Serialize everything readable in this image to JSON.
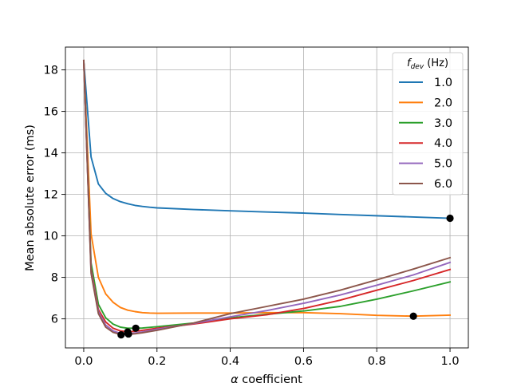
{
  "chart_data": {
    "type": "line",
    "title": "",
    "xlabel_prefix": "α",
    "xlabel_suffix": " coefficient",
    "ylabel": "Mean absolute error (ms)",
    "xlim": [
      -0.05,
      1.05
    ],
    "ylim": [
      4.6,
      19.1
    ],
    "x_ticks": [
      0.0,
      0.2,
      0.4,
      0.6,
      0.8,
      1.0
    ],
    "x_tick_labels": [
      "0.0",
      "0.2",
      "0.4",
      "0.6",
      "0.8",
      "1.0"
    ],
    "y_ticks": [
      6,
      8,
      10,
      12,
      14,
      16,
      18
    ],
    "y_tick_labels": [
      "6",
      "8",
      "10",
      "12",
      "14",
      "16",
      "18"
    ],
    "grid": true,
    "legend": {
      "title_main": "f",
      "title_sub": "dev",
      "title_unit": " (Hz)",
      "placement": "top-right"
    },
    "series": [
      {
        "name": "1.0",
        "color": "#1f77b4",
        "x": [
          0.0,
          0.02,
          0.04,
          0.06,
          0.08,
          0.1,
          0.12,
          0.14,
          0.16,
          0.18,
          0.2,
          0.3,
          0.4,
          0.5,
          0.6,
          0.7,
          0.8,
          0.9,
          1.0
        ],
        "y": [
          18.45,
          13.8,
          12.5,
          12.05,
          11.8,
          11.65,
          11.55,
          11.47,
          11.42,
          11.38,
          11.35,
          11.27,
          11.21,
          11.15,
          11.1,
          11.03,
          10.97,
          10.91,
          10.85
        ],
        "optimum": [
          1.0,
          10.85
        ]
      },
      {
        "name": "2.0",
        "color": "#ff7f0e",
        "x": [
          0.0,
          0.02,
          0.04,
          0.06,
          0.08,
          0.1,
          0.12,
          0.14,
          0.16,
          0.18,
          0.2,
          0.3,
          0.4,
          0.5,
          0.6,
          0.7,
          0.8,
          0.9,
          1.0
        ],
        "y": [
          18.45,
          10.1,
          8.0,
          7.2,
          6.8,
          6.55,
          6.42,
          6.35,
          6.3,
          6.28,
          6.27,
          6.28,
          6.28,
          6.3,
          6.3,
          6.25,
          6.17,
          6.13,
          6.18
        ],
        "optimum": [
          0.9,
          6.13
        ]
      },
      {
        "name": "3.0",
        "color": "#2ca02c",
        "x": [
          0.0,
          0.02,
          0.04,
          0.06,
          0.08,
          0.1,
          0.12,
          0.14,
          0.16,
          0.2,
          0.3,
          0.4,
          0.5,
          0.6,
          0.7,
          0.8,
          0.9,
          1.0
        ],
        "y": [
          18.45,
          8.7,
          6.7,
          6.05,
          5.75,
          5.6,
          5.55,
          5.55,
          5.56,
          5.62,
          5.8,
          6.05,
          6.22,
          6.38,
          6.6,
          6.95,
          7.35,
          7.78
        ],
        "optimum": [
          0.142,
          5.55
        ]
      },
      {
        "name": "4.0",
        "color": "#d62728",
        "x": [
          0.0,
          0.02,
          0.04,
          0.06,
          0.08,
          0.1,
          0.12,
          0.14,
          0.16,
          0.2,
          0.3,
          0.4,
          0.5,
          0.6,
          0.7,
          0.8,
          0.9,
          1.0
        ],
        "y": [
          18.45,
          8.4,
          6.45,
          5.85,
          5.55,
          5.42,
          5.38,
          5.4,
          5.45,
          5.55,
          5.75,
          6.0,
          6.2,
          6.5,
          6.9,
          7.38,
          7.85,
          8.38
        ],
        "optimum": [
          0.12,
          5.37
        ]
      },
      {
        "name": "5.0",
        "color": "#9467bd",
        "x": [
          0.0,
          0.02,
          0.04,
          0.06,
          0.08,
          0.1,
          0.12,
          0.14,
          0.16,
          0.2,
          0.3,
          0.4,
          0.5,
          0.6,
          0.7,
          0.8,
          0.9,
          1.0
        ],
        "y": [
          18.45,
          8.3,
          6.35,
          5.7,
          5.42,
          5.3,
          5.28,
          5.32,
          5.37,
          5.5,
          5.78,
          6.1,
          6.4,
          6.75,
          7.15,
          7.62,
          8.12,
          8.72
        ],
        "optimum": [
          0.122,
          5.27
        ]
      },
      {
        "name": "6.0",
        "color": "#8c564b",
        "x": [
          0.0,
          0.02,
          0.04,
          0.06,
          0.08,
          0.1,
          0.12,
          0.14,
          0.16,
          0.2,
          0.3,
          0.4,
          0.5,
          0.6,
          0.7,
          0.8,
          0.9,
          1.0
        ],
        "y": [
          18.45,
          8.2,
          6.25,
          5.6,
          5.35,
          5.25,
          5.25,
          5.28,
          5.33,
          5.45,
          5.8,
          6.25,
          6.6,
          6.95,
          7.38,
          7.88,
          8.4,
          8.95
        ],
        "optimum": [
          0.102,
          5.23
        ]
      }
    ]
  }
}
